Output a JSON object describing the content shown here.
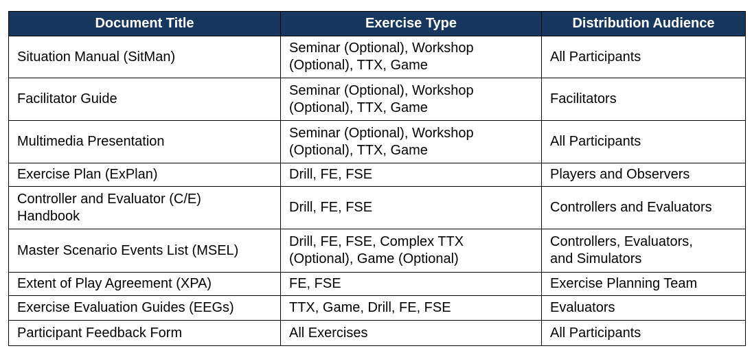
{
  "table": {
    "header": [
      "Document Title",
      "Exercise Type",
      "Distribution Audience"
    ],
    "rows": [
      [
        [
          "Situation Manual (SitMan)"
        ],
        [
          "Seminar (Optional), Workshop",
          "(Optional), TTX, Game"
        ],
        [
          "All Participants"
        ]
      ],
      [
        [
          "Facilitator Guide"
        ],
        [
          "Seminar (Optional), Workshop",
          "(Optional), TTX, Game"
        ],
        [
          "Facilitators"
        ]
      ],
      [
        [
          "Multimedia Presentation"
        ],
        [
          "Seminar (Optional), Workshop",
          "(Optional), TTX, Game"
        ],
        [
          "All Participants"
        ]
      ],
      [
        [
          "Exercise Plan (ExPlan)"
        ],
        [
          "Drill, FE, FSE"
        ],
        [
          "Players and Observers"
        ]
      ],
      [
        [
          "Controller and Evaluator (C/E)",
          "Handbook"
        ],
        [
          "Drill, FE, FSE"
        ],
        [
          "Controllers and Evaluators"
        ]
      ],
      [
        [
          "Master Scenario Events List (MSEL)"
        ],
        [
          "Drill, FE, FSE, Complex TTX",
          "(Optional), Game (Optional)"
        ],
        [
          "Controllers, Evaluators,",
          "and Simulators"
        ]
      ],
      [
        [
          "Extent of Play Agreement (XPA)"
        ],
        [
          "FE, FSE"
        ],
        [
          "Exercise Planning Team"
        ]
      ],
      [
        [
          "Exercise Evaluation Guides (EEGs)"
        ],
        [
          "TTX, Game, Drill, FE, FSE"
        ],
        [
          "Evaluators"
        ]
      ],
      [
        [
          "Participant Feedback Form"
        ],
        [
          "All Exercises"
        ],
        [
          "All Participants"
        ]
      ]
    ]
  }
}
